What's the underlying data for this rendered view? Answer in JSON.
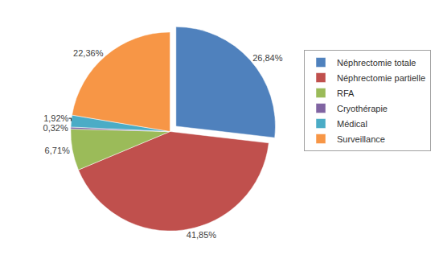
{
  "chart_data": {
    "type": "pie",
    "categories": [
      "Néphrectomie totale",
      "Néphrectomie partielle",
      "RFA",
      "Cryothérapie",
      "Médical",
      "Surveillance"
    ],
    "values": [
      26.84,
      41.85,
      6.71,
      0.32,
      1.92,
      22.36
    ],
    "value_labels": [
      "26,84%",
      "41,85%",
      "6,71%",
      "0,32%",
      "1,92%",
      "22,36%"
    ],
    "colors": [
      "#4f81bd",
      "#c0504d",
      "#9bbb59",
      "#8064a2",
      "#4bacc6",
      "#f79646"
    ],
    "data_labels": true,
    "legend": "right"
  }
}
